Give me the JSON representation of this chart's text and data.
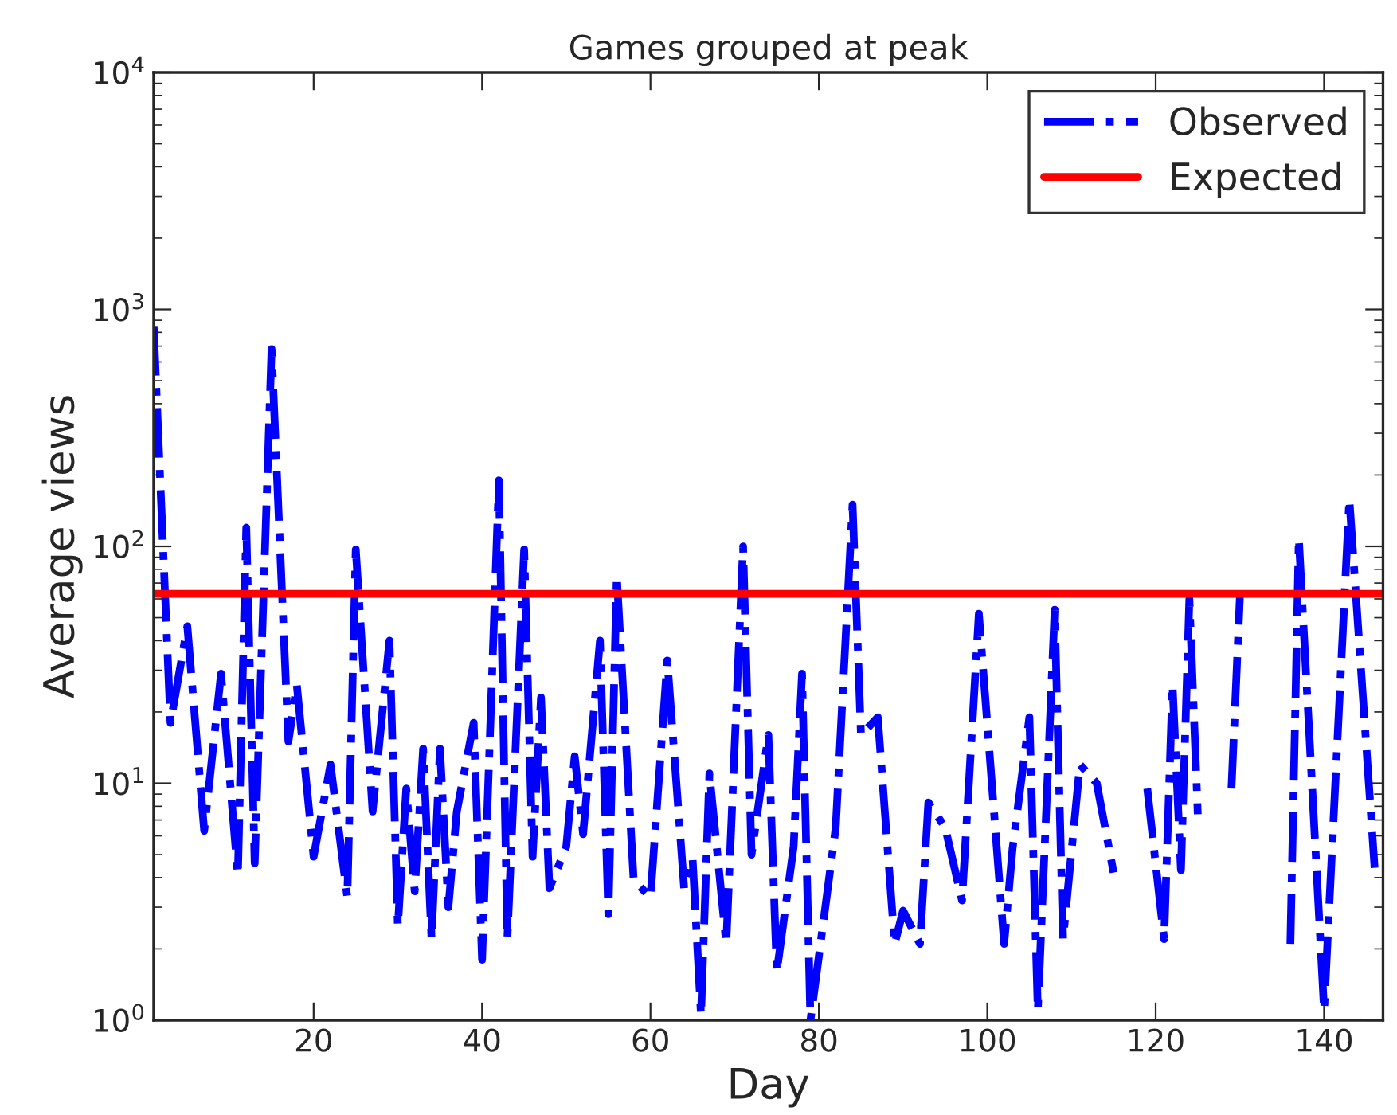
{
  "chart_data": {
    "type": "line",
    "title": "Games grouped at peak",
    "xlabel": "Day",
    "ylabel": "Average views",
    "log": true,
    "xlim": [
      1,
      147
    ],
    "xticks": [
      20,
      40,
      60,
      80,
      100,
      120,
      140
    ],
    "ylim": [
      1,
      10000
    ],
    "yticks": [
      {
        "value": 1,
        "label": "10$^{0}$"
      },
      {
        "value": 10,
        "label": "10$^{1}$"
      },
      {
        "value": 100,
        "label": "10$^{2}$"
      },
      {
        "value": 1000,
        "label": "10$^{3}$"
      },
      {
        "value": 10000,
        "label": "10$^{4}$"
      }
    ],
    "grid": false,
    "legend": "top right",
    "series": [
      {
        "name": "Observed",
        "color": "#0000ff",
        "line_style": "dashdot",
        "x": [
          1,
          3,
          5,
          7,
          9,
          11,
          12,
          13,
          15,
          17,
          18,
          20,
          22,
          24,
          25,
          27,
          29,
          30,
          31,
          32,
          33,
          34,
          35,
          36,
          37,
          39,
          40,
          42,
          43,
          45,
          46,
          47,
          48,
          50,
          51,
          52,
          54,
          55,
          56,
          58,
          60,
          62,
          64,
          65,
          66,
          67,
          69,
          71,
          72,
          74,
          75,
          77,
          78,
          79,
          82,
          84,
          85,
          87,
          89,
          90,
          92,
          93,
          95,
          97,
          99,
          102,
          103,
          105,
          106,
          108,
          109,
          111,
          113,
          115,
          117,
          119,
          121,
          122,
          123,
          124,
          125,
          126,
          127,
          129,
          130,
          133,
          136,
          137,
          140,
          143,
          146
        ],
        "values": [
          850,
          18,
          46,
          6.3,
          29,
          4.1,
          120,
          4.6,
          680,
          15,
          26,
          4.9,
          12,
          3.3,
          97,
          7.6,
          40,
          2.5,
          9.5,
          3.5,
          14,
          2.2,
          14,
          3.0,
          7.6,
          18,
          1.8,
          190,
          2.2,
          97,
          4.9,
          23,
          3.6,
          5.4,
          13,
          6.1,
          40,
          2.8,
          75,
          3.9,
          3.3,
          33,
          3.6,
          4.8,
          1.05,
          11,
          2.1,
          100,
          5.0,
          16,
          1.6,
          5.4,
          29,
          1.0,
          6.5,
          150,
          16,
          19,
          2.1,
          2.9,
          2.1,
          8.3,
          6.5,
          3.2,
          52,
          2.1,
          5.3,
          19,
          1.1,
          54,
          2.2,
          12,
          10,
          4.2,
          null,
          9.5,
          2.2,
          26,
          4.3,
          60,
          7.4,
          null,
          null,
          9.5,
          61,
          null,
          2.1,
          108,
          1.1,
          158,
          4.4
        ]
      },
      {
        "name": "Expected",
        "color": "#ff0000",
        "line_style": "solid",
        "x": [
          1,
          147
        ],
        "values": [
          63,
          63
        ]
      }
    ]
  }
}
